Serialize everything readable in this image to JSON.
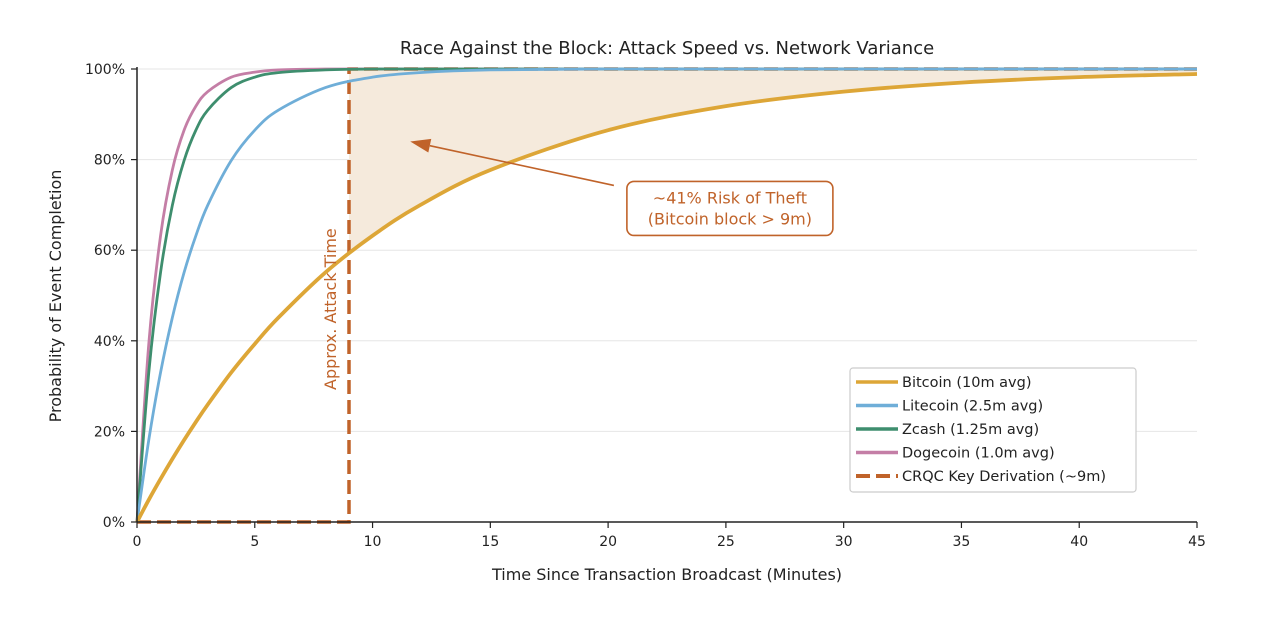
{
  "chart_data": {
    "type": "line",
    "title": "Race Against the Block: Attack Speed vs. Network Variance",
    "xlabel": "Time Since Transaction Broadcast (Minutes)",
    "ylabel": "Probability of Event Completion",
    "xlim": [
      0,
      45
    ],
    "ylim": [
      0,
      100
    ],
    "x_ticks": [
      "0",
      "5",
      "10",
      "15",
      "20",
      "25",
      "30",
      "35",
      "40",
      "45"
    ],
    "y_ticks": [
      "0%",
      "20%",
      "40%",
      "60%",
      "80%",
      "100%"
    ],
    "grid": "horizontal",
    "legend_position": "bottom-right",
    "x": [
      0,
      0.5,
      1,
      1.5,
      2,
      2.5,
      3,
      4,
      5,
      6,
      8,
      10,
      12,
      15,
      20,
      25,
      30,
      35,
      40,
      45
    ],
    "series": [
      {
        "name": "Bitcoin (10m avg)",
        "color": "#DDA637",
        "style": "solid",
        "values": [
          0,
          4.9,
          9.5,
          13.9,
          18.1,
          22.1,
          25.9,
          33.0,
          39.3,
          45.1,
          55.1,
          63.2,
          69.9,
          77.7,
          86.5,
          91.8,
          95.0,
          97.0,
          98.2,
          98.9
        ]
      },
      {
        "name": "Litecoin (2.5m avg)",
        "color": "#6FAED8",
        "style": "solid",
        "values": [
          0,
          18.1,
          33.0,
          45.1,
          55.1,
          63.2,
          69.9,
          79.8,
          86.5,
          90.9,
          95.9,
          98.2,
          99.2,
          99.8,
          100,
          100,
          100,
          100,
          100,
          100
        ]
      },
      {
        "name": "Zcash (1.25m avg)",
        "color": "#3E8E6E",
        "style": "solid",
        "values": [
          0,
          33.0,
          55.1,
          69.9,
          79.8,
          86.5,
          90.9,
          95.9,
          98.2,
          99.2,
          99.8,
          100,
          100,
          100,
          100,
          100,
          100,
          100,
          100,
          100
        ]
      },
      {
        "name": "Dogecoin (1.0m avg)",
        "color": "#C47EA6",
        "style": "solid",
        "values": [
          0,
          39.3,
          63.2,
          77.7,
          86.5,
          91.8,
          95.0,
          98.2,
          99.3,
          99.8,
          100,
          100,
          100,
          100,
          100,
          100,
          100,
          100,
          100,
          100
        ]
      },
      {
        "name": "CRQC Key Derivation (~9m)",
        "color": "#C0632A",
        "style": "dashed",
        "points": [
          [
            0,
            0
          ],
          [
            9,
            0
          ],
          [
            9,
            100
          ],
          [
            45,
            100
          ]
        ]
      }
    ],
    "shaded_region": {
      "from_x": 9,
      "to_x": 45,
      "between": [
        "Bitcoin (10m avg)",
        "100%"
      ],
      "color": "#F5EADC"
    },
    "annotations": [
      {
        "text": "Approx. Attack Time",
        "x": 8.2,
        "y": 47,
        "rotation": "vertical",
        "color": "#C0632A"
      },
      {
        "lines": [
          "~41% Risk of Theft",
          "(Bitcoin block > 9m)"
        ],
        "x": 25,
        "y": 69,
        "arrow_to": [
          11.6,
          84
        ],
        "color": "#C0632A"
      }
    ]
  }
}
